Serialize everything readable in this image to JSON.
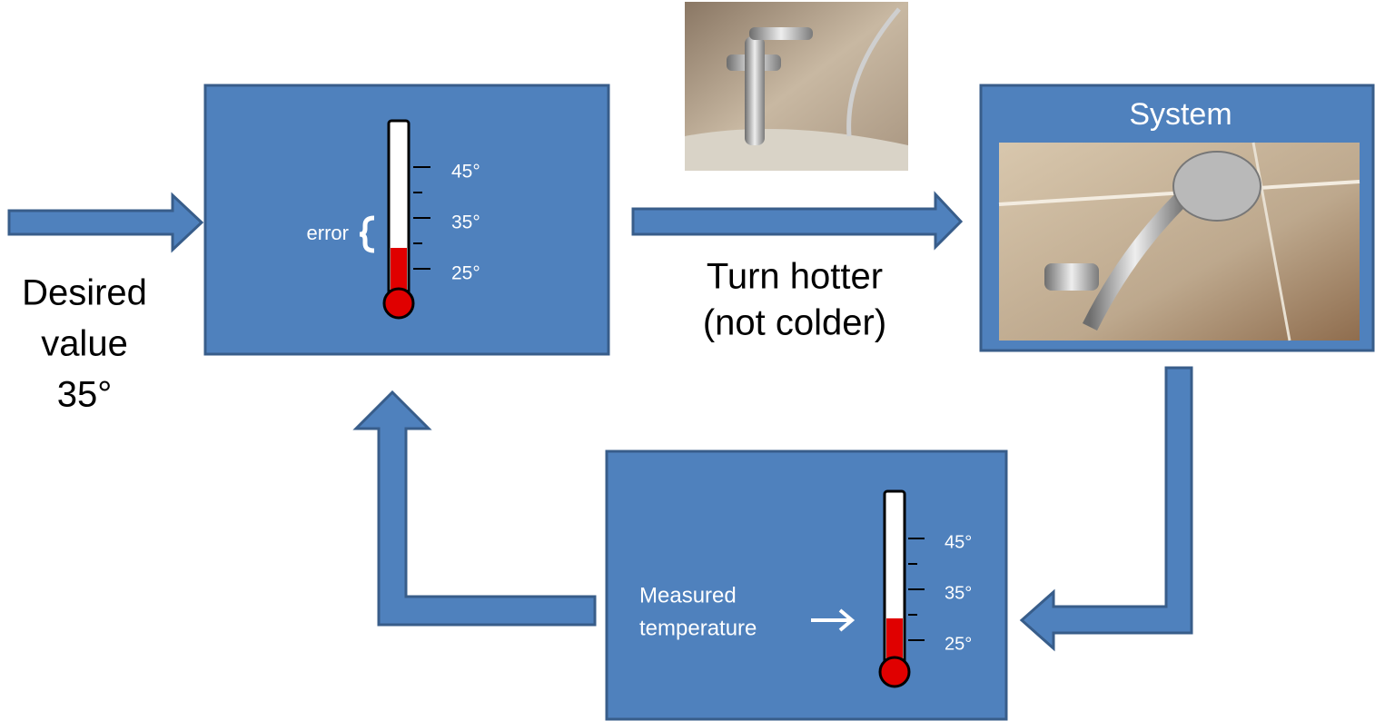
{
  "setpoint": {
    "lines": [
      "Desired",
      "value",
      "35°"
    ]
  },
  "controller": {
    "error_label": "error",
    "scale": [
      "45°",
      "35°",
      "25°"
    ]
  },
  "action": {
    "lines": [
      "Turn hotter",
      "(not colder)"
    ]
  },
  "system": {
    "title": "System"
  },
  "sensor": {
    "label_lines": [
      "Measured",
      "temperature"
    ],
    "scale": [
      "45°",
      "35°",
      "25°"
    ]
  }
}
